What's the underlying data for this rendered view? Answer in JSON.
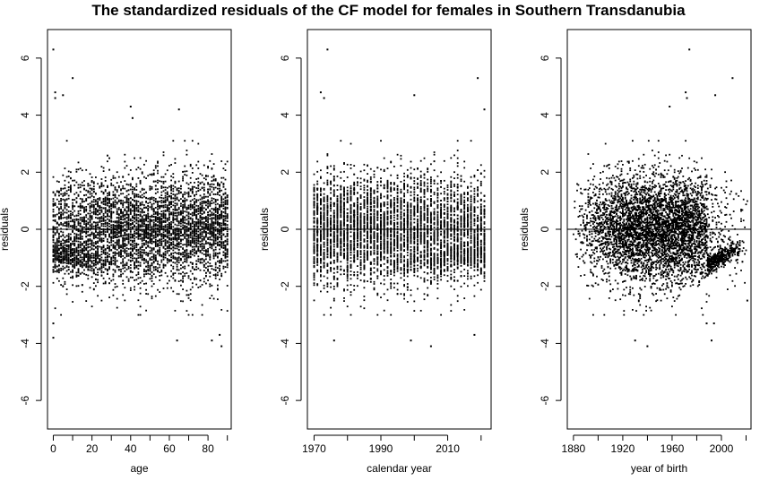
{
  "title": "The standardized residuals of the CF model for females in Southern Transdanubia",
  "chart_data": [
    {
      "type": "scatter",
      "xlabel": "age",
      "ylabel": "residuals",
      "xlim": [
        -3,
        92
      ],
      "ylim": [
        -7,
        7
      ],
      "xticks": [
        0,
        20,
        40,
        60,
        80
      ],
      "yticks": [
        -6,
        -4,
        -2,
        0,
        2,
        4,
        6
      ],
      "reference_line_y": 0,
      "grid": false,
      "series": [
        {
          "points_rule": "x = 0..90 (integer ages) × 50 years; residuals mostly within ±2, range ≈ -4.1 to 6.3",
          "points": [
            [
              0,
              6.3
            ],
            [
              1,
              4.8
            ],
            [
              1,
              4.6
            ],
            [
              5,
              4.7
            ],
            [
              10,
              5.3
            ],
            [
              0,
              -3.8
            ],
            [
              0,
              -3.3
            ],
            [
              40,
              4.3
            ],
            [
              41,
              3.9
            ],
            [
              65,
              4.2
            ],
            [
              82,
              -3.9
            ],
            [
              87,
              -4.1
            ],
            [
              64,
              -3.9
            ],
            [
              86,
              -3.7
            ]
          ]
        }
      ]
    },
    {
      "type": "scatter",
      "xlabel": "calendar year",
      "ylabel": "residuals",
      "xlim": [
        1968,
        2023
      ],
      "ylim": [
        -7,
        7
      ],
      "xticks": [
        1970,
        1990,
        2010
      ],
      "yticks": [
        -6,
        -4,
        -2,
        0,
        2,
        4,
        6
      ],
      "reference_line_y": 0,
      "grid": false,
      "series": [
        {
          "points_rule": "x = 1970..2021 (calendar years) × 91 ages; vertical columns of residuals mostly within ±2",
          "points": [
            [
              1974,
              6.3
            ],
            [
              1972,
              4.8
            ],
            [
              1973,
              4.6
            ],
            [
              2000,
              4.7
            ],
            [
              2019,
              5.3
            ],
            [
              2021,
              4.2
            ],
            [
              1976,
              -3.9
            ],
            [
              1999,
              -3.9
            ],
            [
              2005,
              -4.1
            ],
            [
              2018,
              -3.7
            ]
          ]
        }
      ]
    },
    {
      "type": "scatter",
      "xlabel": "year of birth",
      "ylabel": "residuals",
      "xlim": [
        1875,
        2024
      ],
      "ylim": [
        -7,
        7
      ],
      "xticks": [
        1880,
        1920,
        1960,
        2000
      ],
      "yticks": [
        -6,
        -4,
        -2,
        0,
        2,
        4,
        6
      ],
      "reference_line_y": 0,
      "grid": false,
      "series": [
        {
          "points_rule": "x = calendar year − age (≈1880..2021); dense cloud around 1940–1980, trailing band near −1 to −0.6 for 1990–2015",
          "points": [
            [
              1974,
              6.3
            ],
            [
              1971,
              4.8
            ],
            [
              1972,
              4.6
            ],
            [
              1995,
              4.7
            ],
            [
              2009,
              5.3
            ],
            [
              1958,
              4.3
            ],
            [
              1930,
              -3.9
            ],
            [
              1940,
              -4.1
            ],
            [
              1992,
              -3.9
            ],
            [
              1988,
              -3.3
            ],
            [
              1994,
              -3.3
            ],
            [
              2021,
              -2.5
            ]
          ]
        }
      ]
    }
  ]
}
